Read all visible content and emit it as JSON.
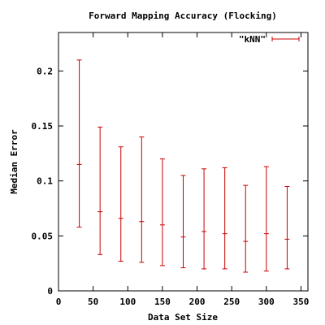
{
  "chart_data": {
    "type": "scatter",
    "subtype": "errorbar",
    "title": "Forward Mapping Accuracy (Flocking)",
    "xlabel": "Data Set Size",
    "ylabel": "Median Error",
    "xlim": [
      0,
      360
    ],
    "ylim": [
      0,
      0.235
    ],
    "x_ticks": [
      0,
      50,
      100,
      150,
      200,
      250,
      300,
      350
    ],
    "y_ticks": [
      0,
      0.05,
      0.1,
      0.15,
      0.2
    ],
    "x_tick_labels": [
      "0",
      "50",
      "100",
      "150",
      "200",
      "250",
      "300",
      "350"
    ],
    "y_tick_labels": [
      "0",
      "0.05",
      "0.1",
      "0.15",
      "0.2"
    ],
    "grid": false,
    "legend_position": "top-right",
    "series": [
      {
        "name": "\"kNN\"",
        "color": "#cc0000",
        "x": [
          30,
          60,
          90,
          120,
          150,
          180,
          210,
          240,
          270,
          300,
          330
        ],
        "y": [
          0.115,
          0.072,
          0.066,
          0.063,
          0.06,
          0.049,
          0.054,
          0.052,
          0.045,
          0.052,
          0.047
        ],
        "ylow": [
          0.058,
          0.033,
          0.027,
          0.026,
          0.023,
          0.021,
          0.02,
          0.02,
          0.017,
          0.018,
          0.02
        ],
        "yhigh": [
          0.21,
          0.149,
          0.131,
          0.14,
          0.12,
          0.105,
          0.111,
          0.112,
          0.096,
          0.113,
          0.095
        ]
      }
    ]
  }
}
